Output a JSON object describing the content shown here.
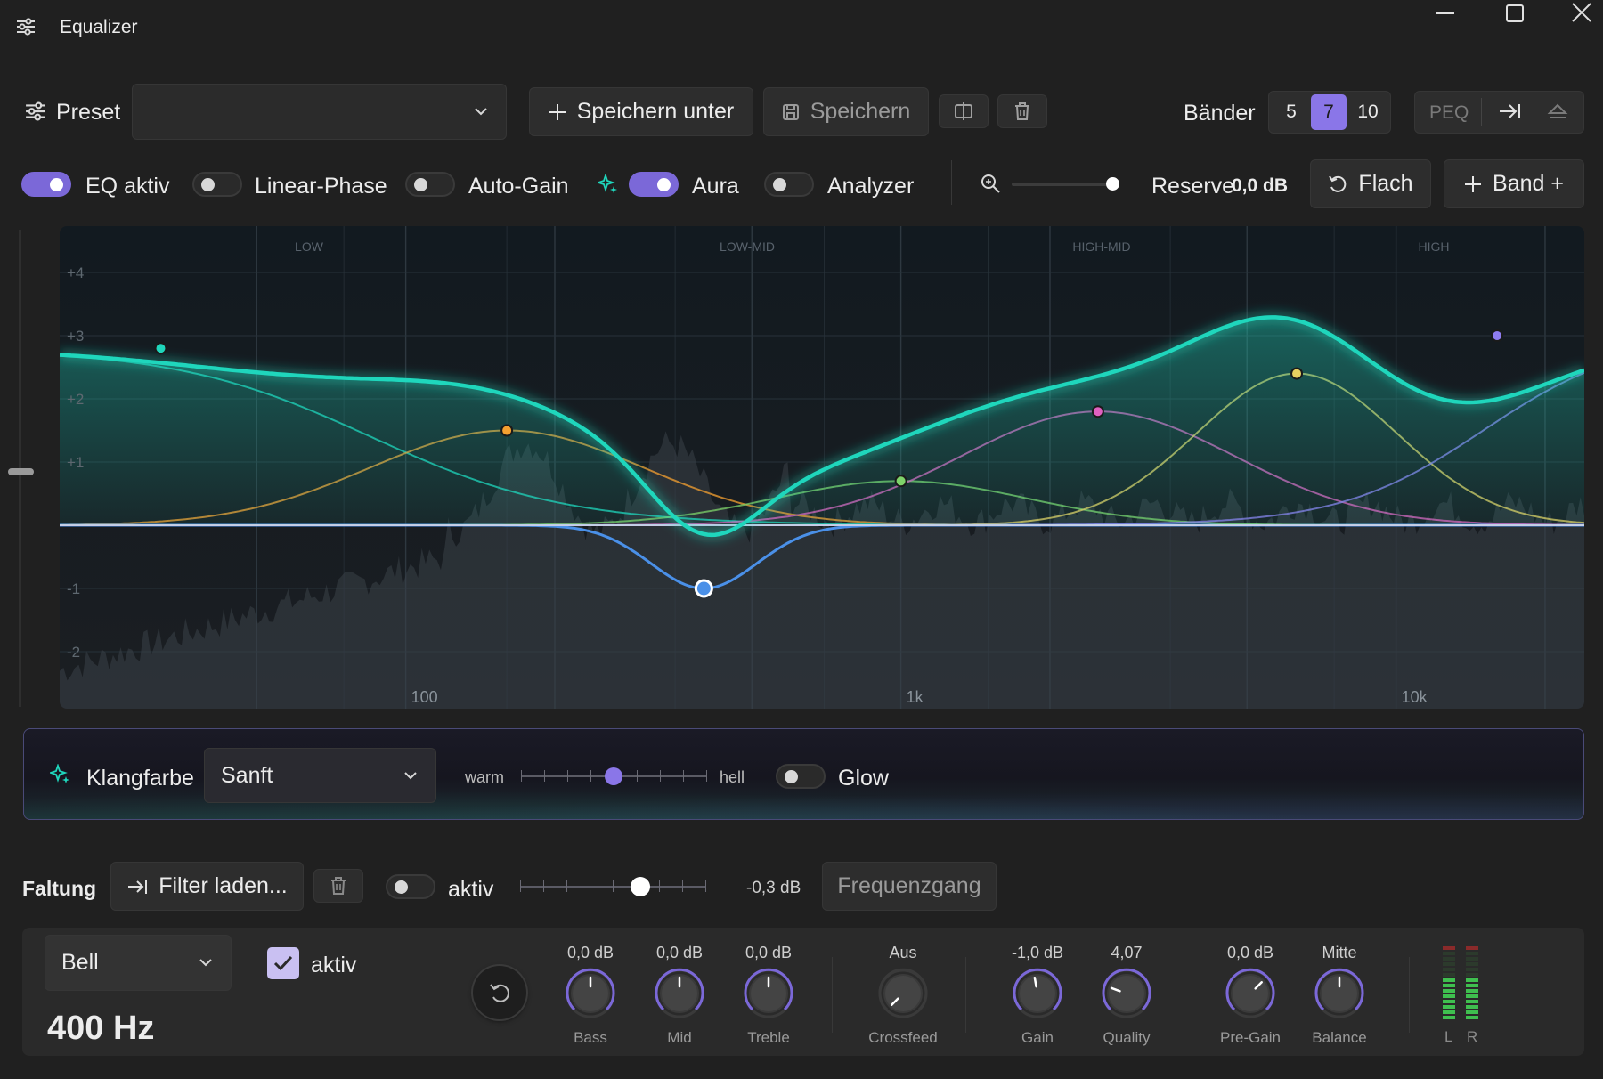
{
  "window": {
    "title": "Equalizer",
    "controls": [
      "minimize",
      "maximize",
      "close"
    ]
  },
  "toolbar": {
    "preset_label": "Preset",
    "preset_value": "",
    "save_as_label": "Speichern unter",
    "save_label": "Speichern",
    "bands_label": "Bänder",
    "band_options": [
      "5",
      "7",
      "10"
    ],
    "band_selected": "7",
    "peq_label": "PEQ"
  },
  "toggles": {
    "eq_active": {
      "label": "EQ aktiv",
      "on": true
    },
    "linear_phase": {
      "label": "Linear-Phase",
      "on": false
    },
    "auto_gain": {
      "label": "Auto-Gain",
      "on": false
    },
    "aura": {
      "label": "Aura",
      "on": true
    },
    "analyzer": {
      "label": "Analyzer",
      "on": false
    }
  },
  "reserve": {
    "label": "Reserve",
    "value": "0,0 dB"
  },
  "flat_label": "Flach",
  "add_band_label": "Band +",
  "graph": {
    "regions": [
      "LOW",
      "LOW-MID",
      "HIGH-MID",
      "HIGH"
    ],
    "y_ticks": [
      "+4",
      "+3",
      "+2",
      "+1",
      "-1",
      "-2"
    ],
    "x_ticks": [
      "100",
      "1k",
      "10k"
    ],
    "accent": "#1fd6bc",
    "bands": [
      {
        "freq": 32,
        "gain": 2.8,
        "color": "#1fd6bc"
      },
      {
        "freq": 160,
        "gain": 1.5,
        "color": "#f5a030"
      },
      {
        "freq": 400,
        "gain": -1.0,
        "color": "#4a90e8"
      },
      {
        "freq": 1000,
        "gain": 0.7,
        "color": "#7ed36a"
      },
      {
        "freq": 2500,
        "gain": 1.8,
        "color": "#e060c0"
      },
      {
        "freq": 6300,
        "gain": 2.4,
        "color": "#e8d060"
      },
      {
        "freq": 16000,
        "gain": 3.0,
        "color": "#8e7df0"
      }
    ]
  },
  "timbre": {
    "label": "Klangfarbe",
    "value": "Sanft",
    "left_label": "warm",
    "right_label": "hell",
    "position": 0.5,
    "glow_label": "Glow",
    "glow_on": false
  },
  "convolution": {
    "label": "Faltung",
    "load_label": "Filter laden...",
    "active_label": "aktiv",
    "active_on": false,
    "level": 0.65,
    "value": "-0,3 dB",
    "response_label": "Frequenzgang"
  },
  "band_editor": {
    "type": "Bell",
    "active_label": "aktiv",
    "active_checked": true,
    "frequency": "400 Hz",
    "knobs": [
      {
        "name": "Bass",
        "value": "0,0 dB"
      },
      {
        "name": "Mid",
        "value": "0,0 dB"
      },
      {
        "name": "Treble",
        "value": "0,0 dB"
      },
      {
        "name": "Crossfeed",
        "value": "Aus"
      },
      {
        "name": "Gain",
        "value": "-1,0 dB"
      },
      {
        "name": "Quality",
        "value": "4,07"
      },
      {
        "name": "Pre-Gain",
        "value": "0,0 dB"
      },
      {
        "name": "Balance",
        "value": "Mitte"
      }
    ],
    "meter_labels": [
      "L",
      "R"
    ]
  }
}
